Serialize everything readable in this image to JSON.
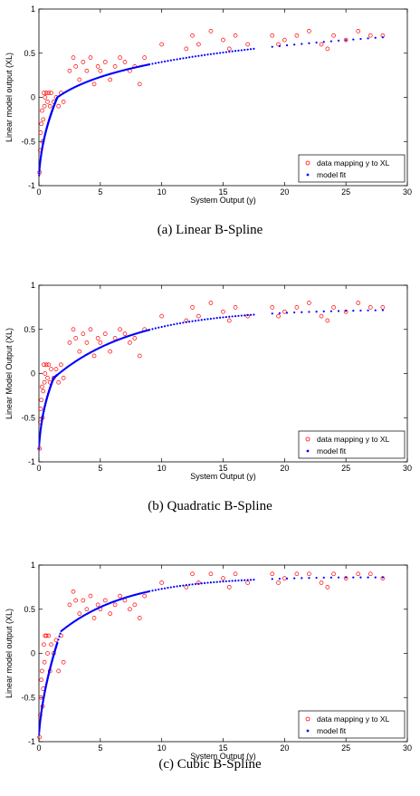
{
  "panels": [
    {
      "caption": "(a) Linear B-Spline",
      "chart_data": {
        "type": "scatter",
        "xlabel": "System Output (y)",
        "ylabel": "Linear model output (XL)",
        "xlim": [
          0,
          30
        ],
        "ylim": [
          -1,
          1
        ],
        "xticks": [
          "0",
          "5",
          "10",
          "15",
          "20",
          "25",
          "30"
        ],
        "yticks": [
          "-1",
          "-0.5",
          "0",
          "0.5",
          "1"
        ],
        "legend_position": "bottom-right",
        "grid": false,
        "series": [
          {
            "name": "data mapping y to XL",
            "marker": "circle-open",
            "color": "#ff0000",
            "x": [
              0.05,
              0.1,
              0.15,
              0.2,
              0.25,
              0.3,
              0.35,
              0.4,
              0.45,
              0.5,
              0.6,
              0.7,
              0.8,
              0.9,
              1.0,
              1.2,
              1.4,
              1.6,
              1.8,
              2.0,
              2.5,
              2.8,
              3.0,
              3.3,
              3.6,
              3.9,
              4.2,
              4.5,
              4.8,
              5.0,
              5.4,
              5.8,
              6.2,
              6.6,
              7.0,
              7.4,
              7.8,
              8.2,
              8.6,
              10.0,
              12.0,
              12.5,
              13.0,
              14.0,
              15.0,
              15.5,
              16.0,
              17.0,
              19.0,
              19.5,
              20.0,
              21.0,
              22.0,
              23.0,
              23.5,
              24.0,
              25.0,
              26.0,
              27.0,
              28.0
            ],
            "y": [
              -0.85,
              -0.6,
              -0.4,
              -0.3,
              -0.15,
              -0.5,
              -0.25,
              0.05,
              -0.1,
              0.0,
              0.05,
              -0.05,
              0.05,
              -0.1,
              0.05,
              -0.05,
              0.0,
              -0.1,
              0.05,
              -0.05,
              0.3,
              0.45,
              0.35,
              0.2,
              0.4,
              0.3,
              0.45,
              0.15,
              0.35,
              0.3,
              0.4,
              0.2,
              0.35,
              0.45,
              0.4,
              0.3,
              0.35,
              0.15,
              0.45,
              0.6,
              0.55,
              0.7,
              0.6,
              0.75,
              0.65,
              0.55,
              0.7,
              0.6,
              0.7,
              0.6,
              0.65,
              0.7,
              0.75,
              0.6,
              0.55,
              0.7,
              0.65,
              0.75,
              0.7,
              0.7
            ]
          },
          {
            "name": "model fit",
            "marker": "dot",
            "color": "#0000ff",
            "curve": "linear"
          }
        ]
      }
    },
    {
      "caption": "(b) Quadratic B-Spline",
      "chart_data": {
        "type": "scatter",
        "xlabel": "System Output (y)",
        "ylabel": "Linear Model Output (XL)",
        "xlim": [
          0,
          30
        ],
        "ylim": [
          -1,
          1
        ],
        "xticks": [
          "0",
          "5",
          "10",
          "15",
          "20",
          "25",
          "30"
        ],
        "yticks": [
          "-1",
          "-0.5",
          "0",
          "0.5",
          "1"
        ],
        "legend_position": "bottom-right",
        "grid": false,
        "series": [
          {
            "name": "data mapping y to XL",
            "marker": "circle-open",
            "color": "#ff0000",
            "x": [
              0.05,
              0.1,
              0.15,
              0.2,
              0.25,
              0.3,
              0.35,
              0.4,
              0.45,
              0.5,
              0.6,
              0.7,
              0.8,
              0.9,
              1.0,
              1.2,
              1.4,
              1.6,
              1.8,
              2.0,
              2.5,
              2.8,
              3.0,
              3.3,
              3.6,
              3.9,
              4.2,
              4.5,
              4.8,
              5.0,
              5.4,
              5.8,
              6.2,
              6.6,
              7.0,
              7.4,
              7.8,
              8.2,
              8.6,
              10.0,
              12.0,
              12.5,
              13.0,
              14.0,
              15.0,
              15.5,
              16.0,
              17.0,
              19.0,
              19.5,
              20.0,
              21.0,
              22.0,
              23.0,
              23.5,
              24.0,
              25.0,
              26.0,
              27.0,
              28.0
            ],
            "y": [
              -0.85,
              -0.55,
              -0.4,
              -0.3,
              -0.15,
              -0.5,
              -0.2,
              0.1,
              -0.1,
              0.0,
              0.1,
              -0.05,
              0.1,
              -0.1,
              0.05,
              -0.05,
              0.05,
              -0.1,
              0.1,
              -0.05,
              0.35,
              0.5,
              0.4,
              0.25,
              0.45,
              0.35,
              0.5,
              0.2,
              0.4,
              0.35,
              0.45,
              0.25,
              0.4,
              0.5,
              0.45,
              0.35,
              0.4,
              0.2,
              0.5,
              0.65,
              0.6,
              0.75,
              0.65,
              0.8,
              0.7,
              0.6,
              0.75,
              0.65,
              0.75,
              0.65,
              0.7,
              0.75,
              0.8,
              0.65,
              0.6,
              0.75,
              0.7,
              0.8,
              0.75,
              0.75
            ]
          },
          {
            "name": "model fit",
            "marker": "dot",
            "color": "#0000ff",
            "curve": "quadratic"
          }
        ]
      }
    },
    {
      "caption": "(c) Cubic B-Spline",
      "chart_data": {
        "type": "scatter",
        "xlabel": "System Output (y)",
        "ylabel": "Linear model output (XL)",
        "xlim": [
          0,
          30
        ],
        "ylim": [
          -1,
          1
        ],
        "xticks": [
          "0",
          "5",
          "10",
          "15",
          "20",
          "25",
          "30"
        ],
        "yticks": [
          "-1",
          "-0.5",
          "0",
          "0.5",
          "1"
        ],
        "legend_position": "bottom-right",
        "grid": false,
        "series": [
          {
            "name": "data mapping y to XL",
            "marker": "circle-open",
            "color": "#ff0000",
            "x": [
              0.05,
              0.1,
              0.15,
              0.2,
              0.25,
              0.3,
              0.35,
              0.4,
              0.45,
              0.5,
              0.6,
              0.7,
              0.8,
              0.9,
              1.0,
              1.2,
              1.4,
              1.6,
              1.8,
              2.0,
              2.5,
              2.8,
              3.0,
              3.3,
              3.6,
              3.9,
              4.2,
              4.5,
              4.8,
              5.0,
              5.4,
              5.8,
              6.2,
              6.6,
              7.0,
              7.4,
              7.8,
              8.2,
              8.6,
              10.0,
              12.0,
              12.5,
              13.0,
              14.0,
              15.0,
              15.5,
              16.0,
              17.0,
              19.0,
              19.5,
              20.0,
              21.0,
              22.0,
              23.0,
              23.5,
              24.0,
              25.0,
              26.0,
              27.0,
              28.0
            ],
            "y": [
              -0.95,
              -0.7,
              -0.5,
              -0.3,
              -0.2,
              -0.6,
              -0.4,
              0.1,
              -0.1,
              0.2,
              0.2,
              0.0,
              0.2,
              -0.2,
              0.1,
              0.0,
              0.15,
              -0.2,
              0.2,
              -0.1,
              0.55,
              0.7,
              0.6,
              0.45,
              0.6,
              0.5,
              0.65,
              0.4,
              0.55,
              0.5,
              0.6,
              0.45,
              0.55,
              0.65,
              0.6,
              0.5,
              0.55,
              0.4,
              0.65,
              0.8,
              0.75,
              0.9,
              0.8,
              0.9,
              0.85,
              0.75,
              0.9,
              0.8,
              0.9,
              0.8,
              0.85,
              0.9,
              0.9,
              0.8,
              0.75,
              0.9,
              0.85,
              0.9,
              0.9,
              0.85
            ]
          },
          {
            "name": "model fit",
            "marker": "dot",
            "color": "#0000ff",
            "curve": "cubic"
          }
        ]
      }
    }
  ]
}
